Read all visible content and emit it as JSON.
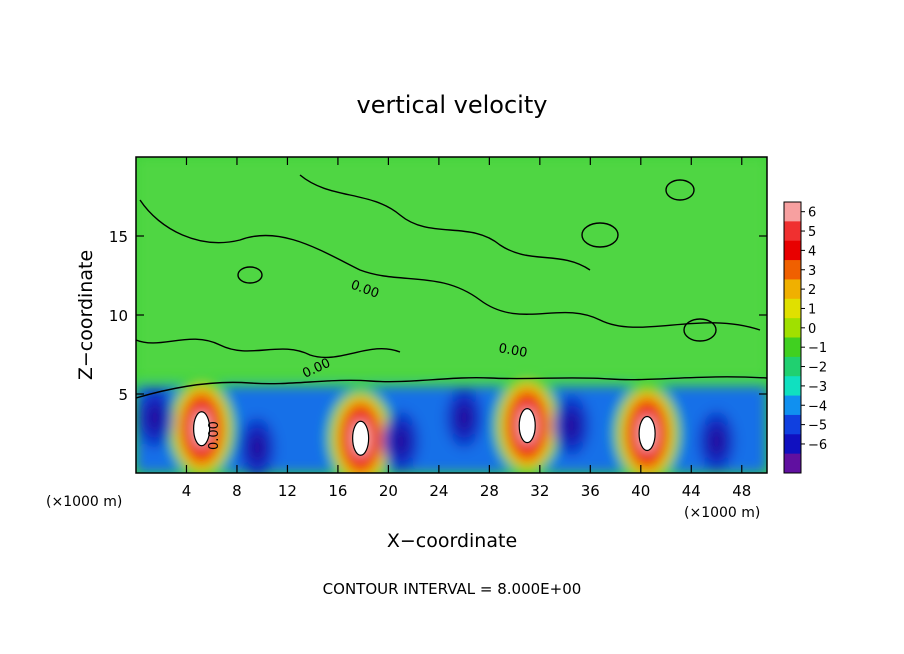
{
  "chart_data": {
    "type": "heatmap",
    "title": "vertical velocity",
    "xlabel": "X−coordinate",
    "ylabel": "Z−coordinate",
    "x_unit_label": "(×1000 m)",
    "y_unit_label": "(×1000 m)",
    "xlim": [
      0,
      50
    ],
    "ylim": [
      0,
      20
    ],
    "x_ticks": [
      4,
      8,
      12,
      16,
      20,
      24,
      28,
      32,
      36,
      40,
      44,
      48
    ],
    "y_ticks": [
      5,
      10,
      15
    ],
    "footer": "CONTOUR INTERVAL = 8.000E+00",
    "contour_labels": [
      "0.00",
      "0.00",
      "0.00",
      "0.00"
    ],
    "colorbar": {
      "min": -6,
      "max": 6,
      "tick_labels": [
        "6",
        "5",
        "4",
        "3",
        "2",
        "1",
        "0",
        "−1",
        "−2",
        "−3",
        "−4",
        "−5",
        "−6"
      ],
      "colors": [
        "#f7a0a0",
        "#f03030",
        "#e80000",
        "#f06000",
        "#f0b000",
        "#e0e000",
        "#a0e000",
        "#40d020",
        "#20d070",
        "#10e0c0",
        "#1090f0",
        "#1040e0",
        "#1010c0",
        "#6010a0"
      ]
    },
    "features": [
      {
        "kind": "updraft",
        "x": 5.2,
        "z": 2.8,
        "value": 6
      },
      {
        "kind": "updraft",
        "x": 17.8,
        "z": 2.2,
        "value": 6
      },
      {
        "kind": "updraft",
        "x": 31.0,
        "z": 3.0,
        "value": 6
      },
      {
        "kind": "updraft",
        "x": 40.5,
        "z": 2.5,
        "value": 6
      },
      {
        "kind": "downdraft",
        "x": 1.5,
        "z": 3.5,
        "value": -4
      },
      {
        "kind": "downdraft",
        "x": 9.6,
        "z": 1.6,
        "value": -5
      },
      {
        "kind": "downdraft",
        "x": 21.0,
        "z": 2.0,
        "value": -5
      },
      {
        "kind": "downdraft",
        "x": 26.0,
        "z": 3.5,
        "value": -4
      },
      {
        "kind": "downdraft",
        "x": 34.5,
        "z": 3.0,
        "value": -5
      },
      {
        "kind": "downdraft",
        "x": 46.0,
        "z": 2.0,
        "value": -5
      }
    ]
  }
}
